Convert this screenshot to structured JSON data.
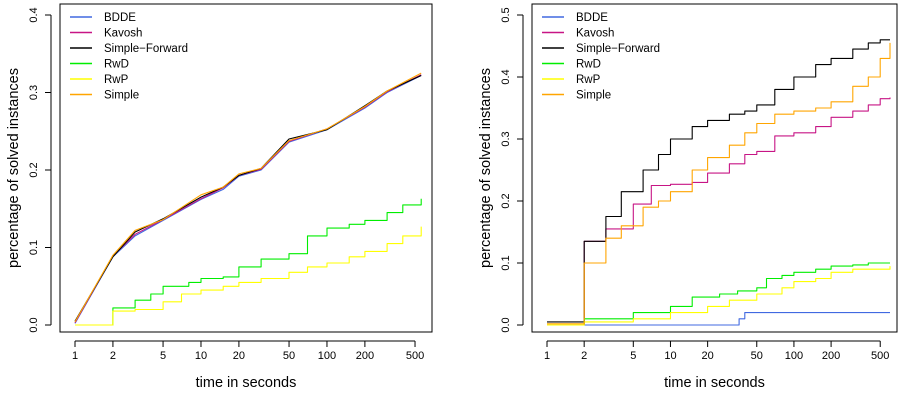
{
  "chart_data": [
    {
      "type": "line",
      "title": "",
      "xlabel": "time in seconds",
      "ylabel": "percentage of solved instances",
      "x_scale": "log",
      "xlim": [
        1,
        600
      ],
      "ylim": [
        0,
        0.4
      ],
      "x_ticks": [
        1,
        2,
        5,
        10,
        20,
        50,
        100,
        200,
        500
      ],
      "x_tick_labels": [
        "1",
        "2",
        "5",
        "10",
        "20",
        "50",
        "100",
        "200",
        "500"
      ],
      "y_ticks": [
        0,
        0.1,
        0.2,
        0.3,
        0.4
      ],
      "y_tick_labels": [
        "0.0",
        "0.1",
        "0.2",
        "0.3",
        "0.4"
      ],
      "legend_position": "top-left",
      "series": [
        {
          "name": "BDDE",
          "color": "#4169E1",
          "step": false,
          "x": [
            1,
            2,
            3,
            5,
            10,
            15,
            20,
            30,
            50,
            100,
            200,
            300,
            560
          ],
          "y": [
            0.002,
            0.088,
            0.115,
            0.135,
            0.162,
            0.175,
            0.192,
            0.2,
            0.236,
            0.252,
            0.28,
            0.3,
            0.322
          ]
        },
        {
          "name": "Kavosh",
          "color": "#C71585",
          "step": false,
          "x": [
            1,
            2,
            3,
            5,
            10,
            15,
            20,
            30,
            50,
            100,
            200,
            300,
            560
          ],
          "y": [
            0.003,
            0.089,
            0.117,
            0.136,
            0.163,
            0.177,
            0.193,
            0.201,
            0.237,
            0.253,
            0.281,
            0.301,
            0.323
          ]
        },
        {
          "name": "Simple−Forward",
          "color": "#000000",
          "step": false,
          "x": [
            1,
            2,
            3,
            5,
            10,
            15,
            20,
            30,
            50,
            100,
            200,
            300,
            560
          ],
          "y": [
            0.005,
            0.088,
            0.12,
            0.137,
            0.165,
            0.178,
            0.193,
            0.202,
            0.24,
            0.252,
            0.283,
            0.302,
            0.322
          ]
        },
        {
          "name": "RwD",
          "color": "#00EE00",
          "step": true,
          "x": [
            1,
            2,
            3,
            4,
            5,
            8,
            10,
            15,
            20,
            30,
            50,
            70,
            100,
            150,
            200,
            300,
            400,
            560
          ],
          "y": [
            0.0,
            0.022,
            0.032,
            0.04,
            0.05,
            0.055,
            0.06,
            0.062,
            0.075,
            0.085,
            0.092,
            0.115,
            0.125,
            0.13,
            0.135,
            0.145,
            0.155,
            0.163
          ]
        },
        {
          "name": "RwP",
          "color": "#FFFF00",
          "step": true,
          "x": [
            1,
            2,
            3,
            5,
            7,
            10,
            15,
            20,
            30,
            50,
            70,
            100,
            150,
            200,
            300,
            400,
            560
          ],
          "y": [
            0.0,
            0.018,
            0.02,
            0.03,
            0.04,
            0.045,
            0.05,
            0.055,
            0.06,
            0.068,
            0.075,
            0.08,
            0.088,
            0.095,
            0.105,
            0.115,
            0.127
          ]
        },
        {
          "name": "Simple",
          "color": "#FFA500",
          "step": false,
          "x": [
            1,
            2,
            3,
            5,
            10,
            15,
            20,
            30,
            50,
            100,
            200,
            300,
            560
          ],
          "y": [
            0.004,
            0.09,
            0.122,
            0.136,
            0.168,
            0.178,
            0.195,
            0.202,
            0.238,
            0.253,
            0.282,
            0.302,
            0.325
          ]
        }
      ]
    },
    {
      "type": "line",
      "title": "",
      "xlabel": "time in seconds",
      "ylabel": "percentage of solved instances",
      "x_scale": "log",
      "xlim": [
        1,
        600
      ],
      "ylim": [
        0,
        0.5
      ],
      "x_ticks": [
        1,
        2,
        5,
        10,
        20,
        50,
        100,
        200,
        500
      ],
      "x_tick_labels": [
        "1",
        "2",
        "5",
        "10",
        "20",
        "50",
        "100",
        "200",
        "500"
      ],
      "y_ticks": [
        0,
        0.1,
        0.2,
        0.3,
        0.4,
        0.5
      ],
      "y_tick_labels": [
        "0.0",
        "0.1",
        "0.2",
        "0.3",
        "0.4",
        "0.5"
      ],
      "legend_position": "top-left",
      "series": [
        {
          "name": "BDDE",
          "color": "#4169E1",
          "step": true,
          "x": [
            1,
            33,
            36,
            40,
            600
          ],
          "y": [
            0.0,
            0.0,
            0.01,
            0.02,
            0.02
          ]
        },
        {
          "name": "Kavosh",
          "color": "#C71585",
          "step": true,
          "x": [
            1,
            2,
            3,
            5,
            7,
            10,
            15,
            20,
            30,
            40,
            50,
            70,
            100,
            150,
            200,
            300,
            400,
            500,
            600
          ],
          "y": [
            0.0,
            0.135,
            0.155,
            0.195,
            0.225,
            0.227,
            0.23,
            0.245,
            0.26,
            0.275,
            0.28,
            0.305,
            0.31,
            0.32,
            0.335,
            0.345,
            0.355,
            0.365,
            0.367
          ]
        },
        {
          "name": "Simple−Forward",
          "color": "#000000",
          "step": true,
          "x": [
            1,
            2,
            3,
            4,
            6,
            8,
            10,
            15,
            20,
            30,
            40,
            50,
            70,
            100,
            150,
            200,
            300,
            400,
            500,
            600
          ],
          "y": [
            0.005,
            0.135,
            0.175,
            0.215,
            0.25,
            0.275,
            0.3,
            0.32,
            0.33,
            0.34,
            0.345,
            0.355,
            0.38,
            0.4,
            0.42,
            0.43,
            0.445,
            0.455,
            0.46,
            0.46
          ]
        },
        {
          "name": "RwD",
          "color": "#00EE00",
          "step": true,
          "x": [
            1,
            2,
            5,
            10,
            15,
            25,
            35,
            50,
            60,
            80,
            100,
            150,
            200,
            300,
            400,
            600
          ],
          "y": [
            0.0,
            0.01,
            0.02,
            0.03,
            0.045,
            0.05,
            0.055,
            0.06,
            0.075,
            0.08,
            0.085,
            0.09,
            0.095,
            0.097,
            0.1,
            0.1
          ]
        },
        {
          "name": "RwP",
          "color": "#FFFF00",
          "step": true,
          "x": [
            1,
            2,
            5,
            10,
            20,
            30,
            50,
            80,
            100,
            150,
            200,
            300,
            600
          ],
          "y": [
            0.0,
            0.005,
            0.01,
            0.02,
            0.03,
            0.04,
            0.05,
            0.06,
            0.07,
            0.075,
            0.085,
            0.09,
            0.095
          ]
        },
        {
          "name": "Simple",
          "color": "#FFA500",
          "step": true,
          "x": [
            1,
            2,
            3,
            4,
            6,
            8,
            10,
            15,
            20,
            30,
            40,
            50,
            70,
            100,
            150,
            200,
            300,
            400,
            500,
            600
          ],
          "y": [
            0.002,
            0.1,
            0.14,
            0.16,
            0.19,
            0.2,
            0.215,
            0.25,
            0.27,
            0.29,
            0.31,
            0.325,
            0.34,
            0.345,
            0.35,
            0.36,
            0.385,
            0.4,
            0.43,
            0.455
          ]
        }
      ]
    }
  ]
}
